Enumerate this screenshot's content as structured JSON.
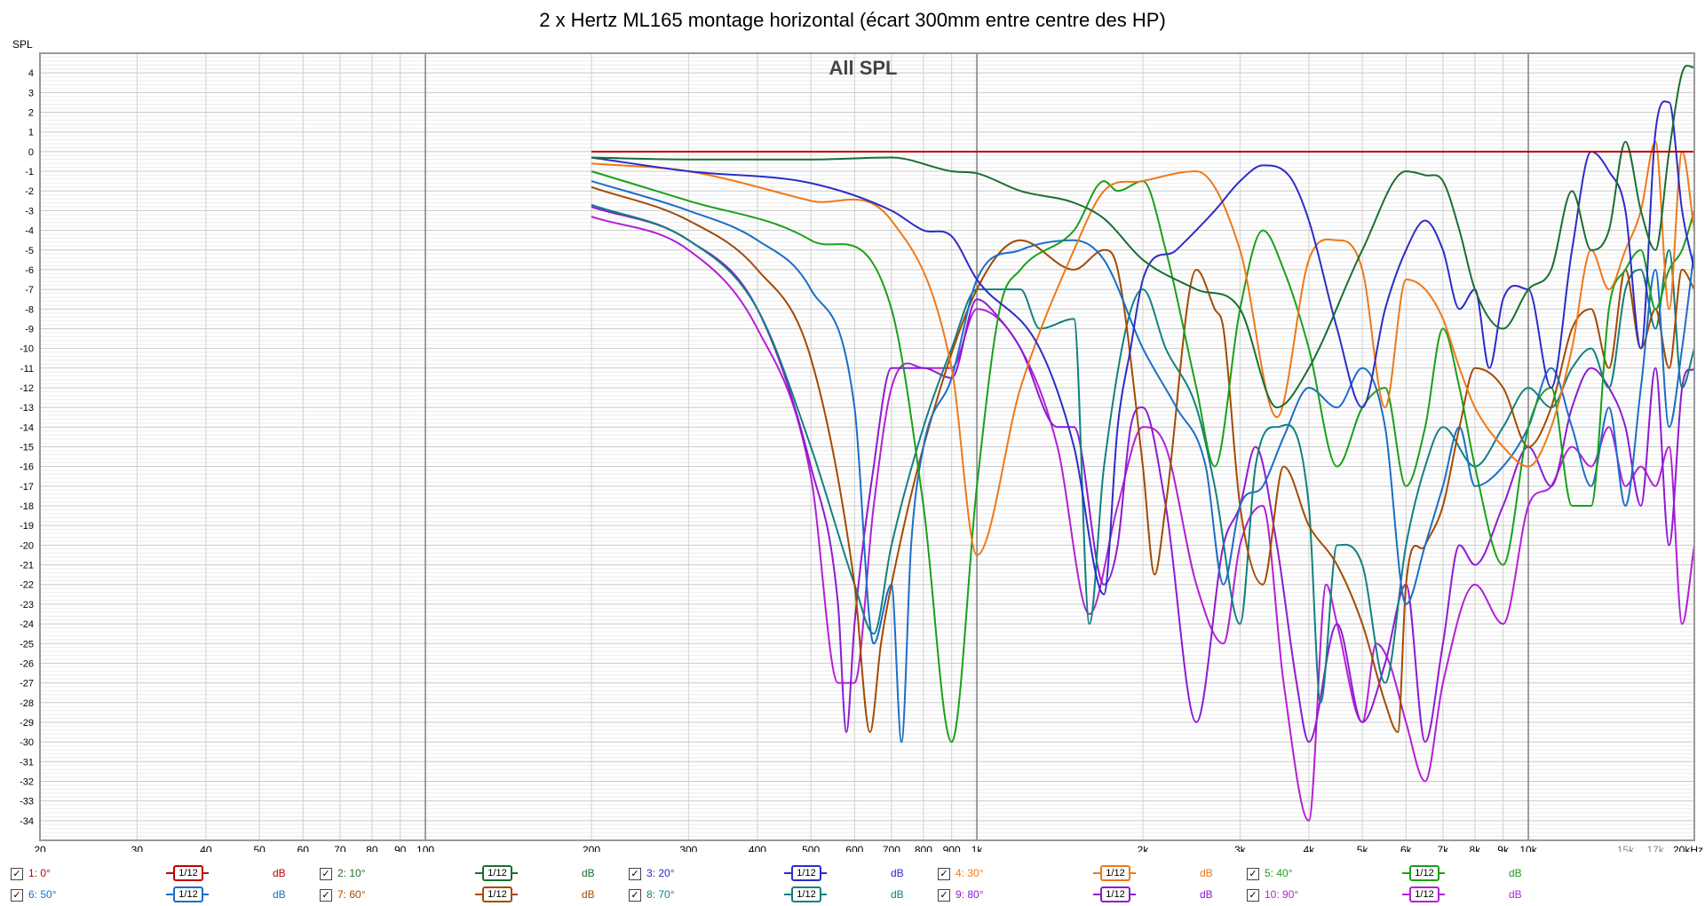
{
  "chart_data": {
    "type": "line",
    "title": "2 x Hertz ML165 montage horizontal (écart 300mm entre centre des HP)",
    "inner_title": "All SPL",
    "ylabel": "SPL",
    "xscale": "log",
    "xlim": [
      20,
      20000
    ],
    "ylim": [
      -35,
      5
    ],
    "grid": true,
    "x_tick_labels": [
      {
        "v": 20,
        "t": "20"
      },
      {
        "v": 30,
        "t": "30"
      },
      {
        "v": 40,
        "t": "40"
      },
      {
        "v": 50,
        "t": "50"
      },
      {
        "v": 60,
        "t": "60"
      },
      {
        "v": 70,
        "t": "70"
      },
      {
        "v": 80,
        "t": "80"
      },
      {
        "v": 90,
        "t": "90"
      },
      {
        "v": 100,
        "t": "100"
      },
      {
        "v": 200,
        "t": "200"
      },
      {
        "v": 300,
        "t": "300"
      },
      {
        "v": 400,
        "t": "400"
      },
      {
        "v": 500,
        "t": "500"
      },
      {
        "v": 600,
        "t": "600"
      },
      {
        "v": 700,
        "t": "700"
      },
      {
        "v": 800,
        "t": "800"
      },
      {
        "v": 900,
        "t": "900"
      },
      {
        "v": 1000,
        "t": "1k"
      },
      {
        "v": 2000,
        "t": "2k"
      },
      {
        "v": 3000,
        "t": "3k"
      },
      {
        "v": 4000,
        "t": "4k"
      },
      {
        "v": 5000,
        "t": "5k"
      },
      {
        "v": 6000,
        "t": "6k"
      },
      {
        "v": 7000,
        "t": "7k"
      },
      {
        "v": 8000,
        "t": "8k"
      },
      {
        "v": 9000,
        "t": "9k"
      },
      {
        "v": 10000,
        "t": "10k"
      },
      {
        "v": 15000,
        "t": "15k"
      },
      {
        "v": 17000,
        "t": "17k"
      },
      {
        "v": 20000,
        "t": "20kHz"
      }
    ],
    "y_ticks": [
      4,
      3,
      2,
      1,
      0,
      -1,
      -2,
      -3,
      -4,
      -5,
      -6,
      -7,
      -8,
      -9,
      -10,
      -11,
      -12,
      -13,
      -14,
      -15,
      -16,
      -17,
      -18,
      -19,
      -20,
      -21,
      -22,
      -23,
      -24,
      -25,
      -26,
      -27,
      -28,
      -29,
      -30,
      -31,
      -32,
      -33,
      -34
    ],
    "series": [
      {
        "name": "1: 0°",
        "color": "#c00000",
        "x": [
          200,
          20000
        ],
        "y": [
          0,
          0
        ]
      },
      {
        "name": "2: 10°",
        "color": "#1a6e30",
        "x": [
          200,
          300,
          500,
          700,
          900,
          1000,
          1200,
          1500,
          1700,
          2000,
          2500,
          3000,
          3500,
          4000,
          5000,
          6000,
          6500,
          7000,
          7500,
          8000,
          9000,
          10000,
          11000,
          12000,
          13000,
          14000,
          15000,
          16000,
          17000,
          18000,
          19000,
          20000
        ],
        "y": [
          -0.3,
          -0.4,
          -0.4,
          -0.3,
          -1,
          -1.1,
          -2,
          -2.6,
          -3.4,
          -5.5,
          -7,
          -8,
          -13,
          -11,
          -5,
          -1,
          -1.2,
          -1.5,
          -4,
          -7,
          -9,
          -7,
          -6,
          -2,
          -5,
          -4,
          0.5,
          -3,
          -5,
          0,
          4,
          4.3
        ]
      },
      {
        "name": "3: 20°",
        "color": "#2c2cc8",
        "x": [
          200,
          300,
          500,
          700,
          800,
          900,
          1000,
          1300,
          1500,
          1700,
          1800,
          1900,
          2000,
          2300,
          2700,
          3000,
          3300,
          3700,
          4000,
          4500,
          5000,
          5500,
          6000,
          6500,
          7000,
          7500,
          8000,
          8500,
          9000,
          10000,
          11000,
          12000,
          13000,
          14000,
          15000,
          16000,
          17000,
          18000,
          19000,
          20000
        ],
        "y": [
          -0.3,
          -1,
          -1.6,
          -3,
          -4,
          -4.3,
          -6.5,
          -10,
          -15,
          -22.5,
          -14,
          -10,
          -6.5,
          -5,
          -3,
          -1.5,
          -0.7,
          -1.3,
          -3.5,
          -9,
          -13,
          -8,
          -5,
          -3.5,
          -5,
          -8,
          -7,
          -11,
          -7.5,
          -7,
          -12,
          -5,
          0,
          -1,
          -3,
          -10,
          1,
          2.5,
          -3,
          -6
        ]
      },
      {
        "name": "4: 30°",
        "color": "#f07818",
        "x": [
          200,
          300,
          500,
          700,
          900,
          1000,
          1200,
          1500,
          1700,
          2000,
          2500,
          3000,
          3500,
          4000,
          4500,
          5000,
          5500,
          6000,
          6500,
          7000,
          7500,
          8000,
          9000,
          10000,
          11000,
          12000,
          13000,
          14000,
          15000,
          16000,
          17000,
          18000,
          19000,
          20000
        ],
        "y": [
          -0.6,
          -1,
          -2.5,
          -3.5,
          -11,
          -20.5,
          -12,
          -5,
          -2,
          -1.5,
          -1,
          -5,
          -13.5,
          -5.5,
          -4.5,
          -6,
          -13,
          -6.5,
          -7,
          -8.5,
          -11,
          -13,
          -15,
          -16,
          -14,
          -10,
          -5,
          -7,
          -5,
          -3,
          0.5,
          -8,
          0,
          -4
        ]
      },
      {
        "name": "5: 40°",
        "color": "#19a019",
        "x": [
          200,
          300,
          500,
          700,
          800,
          900,
          1000,
          1100,
          1200,
          1500,
          1700,
          1800,
          2000,
          2200,
          2500,
          2700,
          3000,
          3300,
          3600,
          4000,
          4500,
          5000,
          5500,
          6000,
          6500,
          7000,
          7500,
          8000,
          9000,
          10000,
          11000,
          12000,
          13000,
          14000,
          15000,
          16000,
          17000,
          18000,
          19000,
          20000
        ],
        "y": [
          -1,
          -2.5,
          -4.5,
          -8,
          -18,
          -30,
          -17,
          -8,
          -6,
          -4,
          -1.5,
          -2,
          -1.5,
          -5,
          -12,
          -16,
          -8,
          -4,
          -6,
          -10,
          -16,
          -13,
          -12,
          -17,
          -14,
          -9,
          -12,
          -16,
          -21,
          -14,
          -12,
          -18,
          -18,
          -8,
          -6,
          -5,
          -8,
          -6,
          -5,
          -3
        ]
      },
      {
        "name": "6: 50°",
        "color": "#1a6ec8",
        "x": [
          200,
          300,
          400,
          500,
          600,
          650,
          700,
          730,
          760,
          800,
          900,
          1000,
          1200,
          1500,
          1700,
          2000,
          2300,
          2600,
          2800,
          3000,
          3300,
          3600,
          4000,
          4500,
          5000,
          5500,
          6000,
          6500,
          7000,
          7500,
          8000,
          9000,
          10000,
          11000,
          12000,
          13000,
          14000,
          15000,
          16000,
          17000,
          18000,
          19000,
          20000
        ],
        "y": [
          -1.5,
          -3,
          -4.5,
          -7,
          -13,
          -25,
          -22,
          -30,
          -20,
          -15,
          -11.5,
          -6.5,
          -5,
          -4.5,
          -5.5,
          -10,
          -13,
          -16,
          -22,
          -18,
          -17,
          -14.5,
          -12,
          -13,
          -11,
          -14,
          -23,
          -20,
          -17,
          -14,
          -17,
          -16,
          -14,
          -11,
          -14,
          -17,
          -13,
          -18,
          -12,
          -6,
          -14,
          -10,
          -5
        ]
      },
      {
        "name": "7: 60°",
        "color": "#a44a00",
        "x": [
          200,
          300,
          400,
          500,
          600,
          640,
          670,
          700,
          800,
          1000,
          1200,
          1500,
          1700,
          1800,
          2000,
          2100,
          2200,
          2500,
          2700,
          2800,
          3000,
          3300,
          3600,
          4000,
          4500,
          5000,
          5500,
          5800,
          6000,
          6500,
          7000,
          7500,
          8000,
          9000,
          10000,
          11000,
          12000,
          13000,
          14000,
          15000,
          16000,
          17000,
          18000,
          19000,
          20000
        ],
        "y": [
          -1.8,
          -3.5,
          -6,
          -10.5,
          -22,
          -29.5,
          -25,
          -22,
          -15,
          -7,
          -4.5,
          -6,
          -5,
          -6,
          -16,
          -21.5,
          -18,
          -6,
          -8,
          -9,
          -18,
          -22,
          -16,
          -19,
          -21,
          -24,
          -28,
          -29.5,
          -22,
          -20,
          -18,
          -14,
          -11,
          -12,
          -15,
          -13,
          -9,
          -8,
          -11,
          -6,
          -10,
          -8,
          -11,
          -6,
          -7
        ]
      },
      {
        "name": "8: 70°",
        "color": "#128080",
        "x": [
          200,
          300,
          400,
          500,
          600,
          650,
          700,
          800,
          900,
          1000,
          1200,
          1300,
          1500,
          1600,
          1700,
          2000,
          2200,
          2500,
          2700,
          3000,
          3200,
          3500,
          4000,
          4200,
          4500,
          5000,
          5500,
          6000,
          6500,
          7000,
          8000,
          9000,
          10000,
          11000,
          12000,
          13000,
          14000,
          15000,
          16000,
          17000,
          18000,
          19000,
          20000
        ],
        "y": [
          -2.7,
          -4.5,
          -8,
          -15,
          -22,
          -24.5,
          -20,
          -14,
          -10,
          -7,
          -7,
          -9,
          -8.5,
          -24,
          -16,
          -7,
          -10,
          -13,
          -17,
          -24,
          -16,
          -14,
          -18,
          -28,
          -20,
          -21,
          -27,
          -20,
          -16,
          -14,
          -16,
          -14,
          -12,
          -13,
          -11,
          -10,
          -12,
          -7,
          -6,
          -9,
          -5,
          -12,
          -10
        ]
      },
      {
        "name": "9: 80°",
        "color": "#8e1ad2",
        "x": [
          200,
          300,
          400,
          500,
          560,
          580,
          600,
          650,
          700,
          800,
          900,
          1000,
          1100,
          1200,
          1400,
          1500,
          1700,
          1800,
          1900,
          2000,
          2200,
          2500,
          2800,
          3000,
          3200,
          3500,
          3800,
          4000,
          4500,
          5000,
          5500,
          6000,
          6500,
          7000,
          7500,
          8000,
          9000,
          10000,
          11000,
          12000,
          13000,
          14000,
          15000,
          16000,
          17000,
          18000,
          19000,
          20000
        ],
        "y": [
          -2.8,
          -4.5,
          -8,
          -16,
          -23,
          -29.5,
          -24,
          -16,
          -11,
          -11,
          -11.5,
          -7.5,
          -8.5,
          -10,
          -14,
          -14,
          -22,
          -20,
          -14,
          -13,
          -18,
          -29,
          -20,
          -18,
          -15,
          -20,
          -27,
          -30,
          -24,
          -29,
          -26,
          -22,
          -30,
          -25,
          -20,
          -21,
          -18,
          -15,
          -17,
          -13,
          -11,
          -12,
          -14,
          -18,
          -11,
          -20,
          -12,
          -11
        ]
      },
      {
        "name": "10: 90°",
        "color": "#b51fd6",
        "x": [
          200,
          300,
          400,
          500,
          560,
          600,
          650,
          700,
          800,
          900,
          1000,
          1200,
          1400,
          1600,
          1800,
          2000,
          2200,
          2500,
          2800,
          3000,
          3300,
          3600,
          4000,
          4300,
          4500,
          5000,
          5300,
          5600,
          6000,
          6500,
          7000,
          8000,
          9000,
          10000,
          11000,
          12000,
          13000,
          14000,
          15000,
          16000,
          17000,
          18000,
          19000,
          20000
        ],
        "y": [
          -3.3,
          -5,
          -9,
          -16.5,
          -27,
          -27,
          -18,
          -12,
          -11,
          -11,
          -8,
          -10,
          -15,
          -23.5,
          -18,
          -14,
          -15,
          -22,
          -25,
          -20,
          -18,
          -27,
          -34,
          -22,
          -24,
          -29,
          -25,
          -26,
          -29,
          -32,
          -27,
          -22,
          -24,
          -18,
          -17,
          -15,
          -16,
          -14,
          -17,
          -16,
          -17,
          -15,
          -24,
          -20
        ]
      }
    ]
  },
  "legend": {
    "smooth_label": "1/12",
    "unit_label": "dB",
    "row1": [
      {
        "check": "✓",
        "label": "1: 0°",
        "color": "#c00000"
      },
      {
        "check": "✓",
        "label": "2: 10°",
        "color": "#1a6e30"
      },
      {
        "check": "✓",
        "label": "3: 20°",
        "color": "#2c2cc8"
      },
      {
        "check": "✓",
        "label": "4: 30°",
        "color": "#f07818"
      },
      {
        "check": "✓",
        "label": "5: 40°",
        "color": "#19a019"
      }
    ],
    "row2": [
      {
        "check": "✓",
        "label": "6: 50°",
        "color": "#1a6ec8"
      },
      {
        "check": "✓",
        "label": "7: 60°",
        "color": "#a44a00"
      },
      {
        "check": "✓",
        "label": "8: 70°",
        "color": "#128080"
      },
      {
        "check": "✓",
        "label": "9: 80°",
        "color": "#8e1ad2"
      },
      {
        "check": "✓",
        "label": "10: 90°",
        "color": "#b51fd6"
      }
    ]
  }
}
